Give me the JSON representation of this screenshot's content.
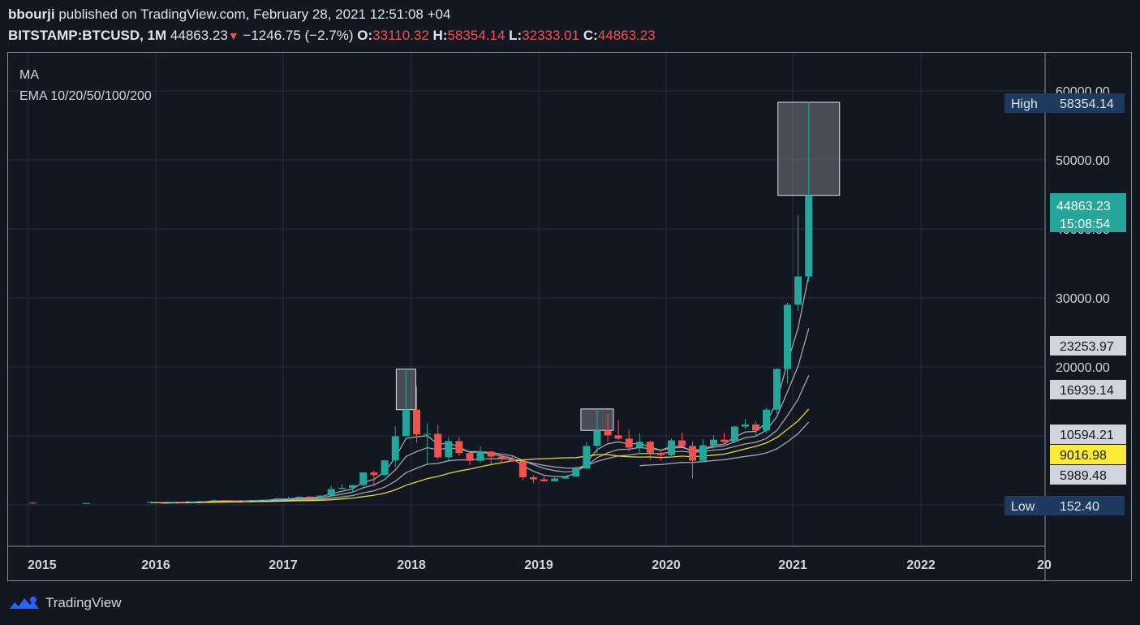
{
  "header": {
    "author": "bbourji",
    "published": "published on TradingView.com, February 28, 2021 12:51:08 +04",
    "symbol": "BITSTAMP:BTCUSD, 1M",
    "last": "44863.23",
    "change": "−1246.75 (−2.7%)",
    "o_label": "O:",
    "o_value": "33110.32",
    "h_label": "H:",
    "h_value": "58354.14",
    "l_label": "L:",
    "l_value": "32333.01",
    "c_label": "C:",
    "c_value": "44863.23"
  },
  "legend": {
    "ma": "MA",
    "ema": "EMA 10/20/50/100/200"
  },
  "footer": {
    "brand": "TradingView"
  },
  "colors": {
    "background": "#131722",
    "up": "#26a69a",
    "down": "#ef5350",
    "grid": "#2a2e39",
    "ema_line": "#b2b5be",
    "ma_line": "#ffeb3b",
    "tag_blue": "#1e3a5f",
    "tag_price": "#26a69a"
  },
  "chart_data": {
    "type": "candlestick",
    "timeframe": "1M",
    "x_ticks": [
      "2015",
      "2016",
      "2017",
      "2018",
      "2019",
      "2020",
      "2021",
      "2022",
      "20"
    ],
    "y_ticks": [
      "60000.00",
      "50000.00",
      "40000.00",
      "30000.00",
      "20000.00"
    ],
    "ylim": [
      0,
      60000
    ],
    "candles": [
      {
        "t": "2015-01",
        "o": 320,
        "h": 330,
        "l": 152.4,
        "c": 215
      },
      {
        "t": "2015-06",
        "o": 230,
        "h": 260,
        "l": 220,
        "c": 260
      },
      {
        "t": "2015-12",
        "o": 380,
        "h": 470,
        "l": 350,
        "c": 430
      },
      {
        "t": "2016-01",
        "o": 430,
        "h": 460,
        "l": 350,
        "c": 370
      },
      {
        "t": "2016-02",
        "o": 370,
        "h": 440,
        "l": 360,
        "c": 437
      },
      {
        "t": "2016-03",
        "o": 437,
        "h": 440,
        "l": 400,
        "c": 416
      },
      {
        "t": "2016-04",
        "o": 416,
        "h": 470,
        "l": 410,
        "c": 448
      },
      {
        "t": "2016-05",
        "o": 448,
        "h": 550,
        "l": 440,
        "c": 532
      },
      {
        "t": "2016-06",
        "o": 532,
        "h": 770,
        "l": 530,
        "c": 672
      },
      {
        "t": "2016-07",
        "o": 672,
        "h": 700,
        "l": 605,
        "c": 624
      },
      {
        "t": "2016-08",
        "o": 624,
        "h": 630,
        "l": 525,
        "c": 575
      },
      {
        "t": "2016-09",
        "o": 575,
        "h": 615,
        "l": 570,
        "c": 609
      },
      {
        "t": "2016-10",
        "o": 609,
        "h": 740,
        "l": 605,
        "c": 698
      },
      {
        "t": "2016-11",
        "o": 698,
        "h": 755,
        "l": 690,
        "c": 743
      },
      {
        "t": "2016-12",
        "o": 743,
        "h": 975,
        "l": 740,
        "c": 964
      },
      {
        "t": "2017-01",
        "o": 964,
        "h": 1150,
        "l": 750,
        "c": 965
      },
      {
        "t": "2017-02",
        "o": 965,
        "h": 1200,
        "l": 920,
        "c": 1190
      },
      {
        "t": "2017-03",
        "o": 1190,
        "h": 1300,
        "l": 900,
        "c": 1080
      },
      {
        "t": "2017-04",
        "o": 1080,
        "h": 1350,
        "l": 1070,
        "c": 1350
      },
      {
        "t": "2017-05",
        "o": 1350,
        "h": 2750,
        "l": 1340,
        "c": 2300
      },
      {
        "t": "2017-06",
        "o": 2300,
        "h": 3000,
        "l": 2300,
        "c": 2480
      },
      {
        "t": "2017-07",
        "o": 2480,
        "h": 2900,
        "l": 1830,
        "c": 2860
      },
      {
        "t": "2017-08",
        "o": 2860,
        "h": 4700,
        "l": 2670,
        "c": 4700
      },
      {
        "t": "2017-09",
        "o": 4700,
        "h": 4980,
        "l": 2970,
        "c": 4340
      },
      {
        "t": "2017-10",
        "o": 4340,
        "h": 6450,
        "l": 4100,
        "c": 6450
      },
      {
        "t": "2017-11",
        "o": 6450,
        "h": 11400,
        "l": 5500,
        "c": 9950
      },
      {
        "t": "2017-12",
        "o": 9950,
        "h": 19666,
        "l": 10000,
        "c": 13800
      },
      {
        "t": "2018-01",
        "o": 13800,
        "h": 17200,
        "l": 9000,
        "c": 10200
      },
      {
        "t": "2018-02",
        "o": 10200,
        "h": 11800,
        "l": 6000,
        "c": 10300
      },
      {
        "t": "2018-03",
        "o": 10300,
        "h": 11600,
        "l": 6600,
        "c": 6900
      },
      {
        "t": "2018-04",
        "o": 6900,
        "h": 9800,
        "l": 6500,
        "c": 9240
      },
      {
        "t": "2018-05",
        "o": 9240,
        "h": 9900,
        "l": 7100,
        "c": 7500
      },
      {
        "t": "2018-06",
        "o": 7500,
        "h": 7800,
        "l": 5800,
        "c": 6390
      },
      {
        "t": "2018-07",
        "o": 6390,
        "h": 8500,
        "l": 6100,
        "c": 7730
      },
      {
        "t": "2018-08",
        "o": 7730,
        "h": 7750,
        "l": 5900,
        "c": 7000
      },
      {
        "t": "2018-09",
        "o": 7000,
        "h": 7400,
        "l": 6100,
        "c": 6620
      },
      {
        "t": "2018-10",
        "o": 6620,
        "h": 7000,
        "l": 6200,
        "c": 6300
      },
      {
        "t": "2018-11",
        "o": 6300,
        "h": 6500,
        "l": 3550,
        "c": 4000
      },
      {
        "t": "2018-12",
        "o": 4000,
        "h": 4300,
        "l": 3150,
        "c": 3700
      },
      {
        "t": "2019-01",
        "o": 3700,
        "h": 4100,
        "l": 3350,
        "c": 3430
      },
      {
        "t": "2019-02",
        "o": 3430,
        "h": 4200,
        "l": 3400,
        "c": 3820
      },
      {
        "t": "2019-03",
        "o": 3820,
        "h": 4100,
        "l": 3700,
        "c": 4100
      },
      {
        "t": "2019-04",
        "o": 4100,
        "h": 5600,
        "l": 4050,
        "c": 5270
      },
      {
        "t": "2019-05",
        "o": 5270,
        "h": 9100,
        "l": 5200,
        "c": 8550
      },
      {
        "t": "2019-06",
        "o": 8550,
        "h": 13900,
        "l": 7500,
        "c": 10800
      },
      {
        "t": "2019-07",
        "o": 10800,
        "h": 13200,
        "l": 9100,
        "c": 10080
      },
      {
        "t": "2019-08",
        "o": 10080,
        "h": 12300,
        "l": 9400,
        "c": 9600
      },
      {
        "t": "2019-09",
        "o": 9600,
        "h": 10950,
        "l": 7700,
        "c": 8300
      },
      {
        "t": "2019-10",
        "o": 8300,
        "h": 10400,
        "l": 7400,
        "c": 9150
      },
      {
        "t": "2019-11",
        "o": 9150,
        "h": 9300,
        "l": 6500,
        "c": 7550
      },
      {
        "t": "2019-12",
        "o": 7550,
        "h": 7750,
        "l": 6400,
        "c": 7200
      },
      {
        "t": "2020-01",
        "o": 7200,
        "h": 9600,
        "l": 6900,
        "c": 9350
      },
      {
        "t": "2020-02",
        "o": 9350,
        "h": 10500,
        "l": 8400,
        "c": 8540
      },
      {
        "t": "2020-03",
        "o": 8540,
        "h": 9200,
        "l": 3850,
        "c": 6410
      },
      {
        "t": "2020-04",
        "o": 6410,
        "h": 9450,
        "l": 6200,
        "c": 8630
      },
      {
        "t": "2020-05",
        "o": 8630,
        "h": 10100,
        "l": 8100,
        "c": 9450
      },
      {
        "t": "2020-06",
        "o": 9450,
        "h": 10400,
        "l": 8900,
        "c": 9140
      },
      {
        "t": "2020-07",
        "o": 9140,
        "h": 11450,
        "l": 8950,
        "c": 11350
      },
      {
        "t": "2020-08",
        "o": 11350,
        "h": 12450,
        "l": 11000,
        "c": 11650
      },
      {
        "t": "2020-09",
        "o": 11650,
        "h": 12100,
        "l": 9900,
        "c": 10780
      },
      {
        "t": "2020-10",
        "o": 10780,
        "h": 14100,
        "l": 10400,
        "c": 13800
      },
      {
        "t": "2020-11",
        "o": 13800,
        "h": 19800,
        "l": 13200,
        "c": 19700
      },
      {
        "t": "2020-12",
        "o": 19700,
        "h": 29300,
        "l": 17600,
        "c": 29000
      },
      {
        "t": "2021-01",
        "o": 29000,
        "h": 41950,
        "l": 28100,
        "c": 33110
      },
      {
        "t": "2021-02",
        "o": 33110,
        "h": 58354.14,
        "l": 32333.01,
        "c": 44863.23
      }
    ],
    "price_tags": [
      {
        "label": "High",
        "value": "58354.14"
      },
      {
        "value": "44863.23",
        "sub": "15:08:54"
      },
      {
        "value": "23253.97"
      },
      {
        "value": "16939.14"
      },
      {
        "value": "10594.21"
      },
      {
        "value": "9016.98"
      },
      {
        "value": "5989.48"
      },
      {
        "label": "Low",
        "value": "152.40"
      }
    ],
    "indicators": [
      {
        "name": "EMA 10",
        "last": 23253.97
      },
      {
        "name": "EMA 20",
        "last": 16939.14
      },
      {
        "name": "EMA 50",
        "last": 10594.21
      },
      {
        "name": "MA",
        "last": 9016.98
      },
      {
        "name": "EMA 200",
        "last": 5989.48
      }
    ]
  }
}
